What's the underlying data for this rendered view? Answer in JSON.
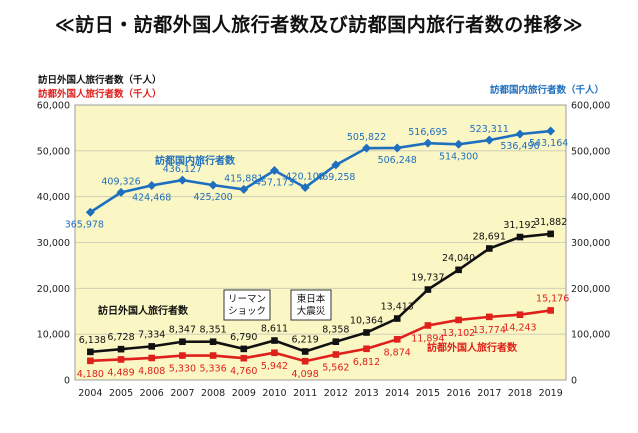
{
  "title": "≪訪日・訪都外国人旅行者数及び訪都国内旅行者数の推移≫",
  "legend": {
    "left_black": "訪日外国人旅行者数（千人）",
    "left_red": "訪都外国人旅行者数（千人）",
    "right_blue": "訪都国内旅行者数（千人）"
  },
  "annotations": [
    {
      "id": "lehman",
      "lines": [
        "リーマン",
        "ショック"
      ]
    },
    {
      "id": "quake",
      "lines": [
        "東日本",
        "大震災"
      ]
    }
  ],
  "chart_data": {
    "type": "line",
    "categories": [
      "2004",
      "2005",
      "2006",
      "2007",
      "2008",
      "2009",
      "2010",
      "2011",
      "2012",
      "2013",
      "2014",
      "2015",
      "2016",
      "2017",
      "2018",
      "2019"
    ],
    "y_left": {
      "range": [
        0,
        60000
      ],
      "ticks": [
        "0",
        "10,000",
        "20,000",
        "30,000",
        "40,000",
        "50,000",
        "60,000"
      ]
    },
    "y_right": {
      "range": [
        0,
        600000
      ],
      "ticks": [
        "0",
        "100,000",
        "200,000",
        "300,000",
        "400,000",
        "500,000",
        "600,000"
      ]
    },
    "grid": true,
    "series": [
      {
        "name": "訪都国内旅行者数",
        "axis": "right",
        "color": "#1f6fbf",
        "values": [
          365978,
          409326,
          424468,
          436127,
          425200,
          415881,
          457173,
          420100,
          469258,
          505822,
          506248,
          516695,
          514300,
          523311,
          536496,
          543164
        ],
        "labels": [
          "365,978",
          "409,326",
          "424,468",
          "436,127",
          "425,200",
          "415,881",
          "457,173",
          "420,100",
          "469,258",
          "505,822",
          "506,248",
          "516,695",
          "514,300",
          "523,311",
          "536,496",
          "543,164"
        ]
      },
      {
        "name": "訪日外国人旅行者数",
        "axis": "left",
        "color": "#111111",
        "values": [
          6138,
          6728,
          7334,
          8347,
          8351,
          6790,
          8611,
          6219,
          8358,
          10364,
          13413,
          19737,
          24040,
          28691,
          31192,
          31882
        ],
        "labels": [
          "6,138",
          "6,728",
          "7,334",
          "8,347",
          "8,351",
          "6,790",
          "8,611",
          "6,219",
          "8,358",
          "10,364",
          "13,413",
          "19,737",
          "24,040",
          "28,691",
          "31,192",
          "31,882"
        ]
      },
      {
        "name": "訪都外国人旅行者数",
        "axis": "left",
        "color": "#e0201b",
        "values": [
          4180,
          4489,
          4808,
          5330,
          5336,
          4760,
          5942,
          4098,
          5562,
          6812,
          8874,
          11894,
          13102,
          13774,
          14243,
          15176
        ],
        "labels": [
          "4,180",
          "4,489",
          "4,808",
          "5,330",
          "5,336",
          "4,760",
          "5,942",
          "4,098",
          "5,562",
          "6,812",
          "8,874",
          "11,894",
          "13,102",
          "13,774",
          "14,243",
          "15,176"
        ]
      }
    ]
  }
}
